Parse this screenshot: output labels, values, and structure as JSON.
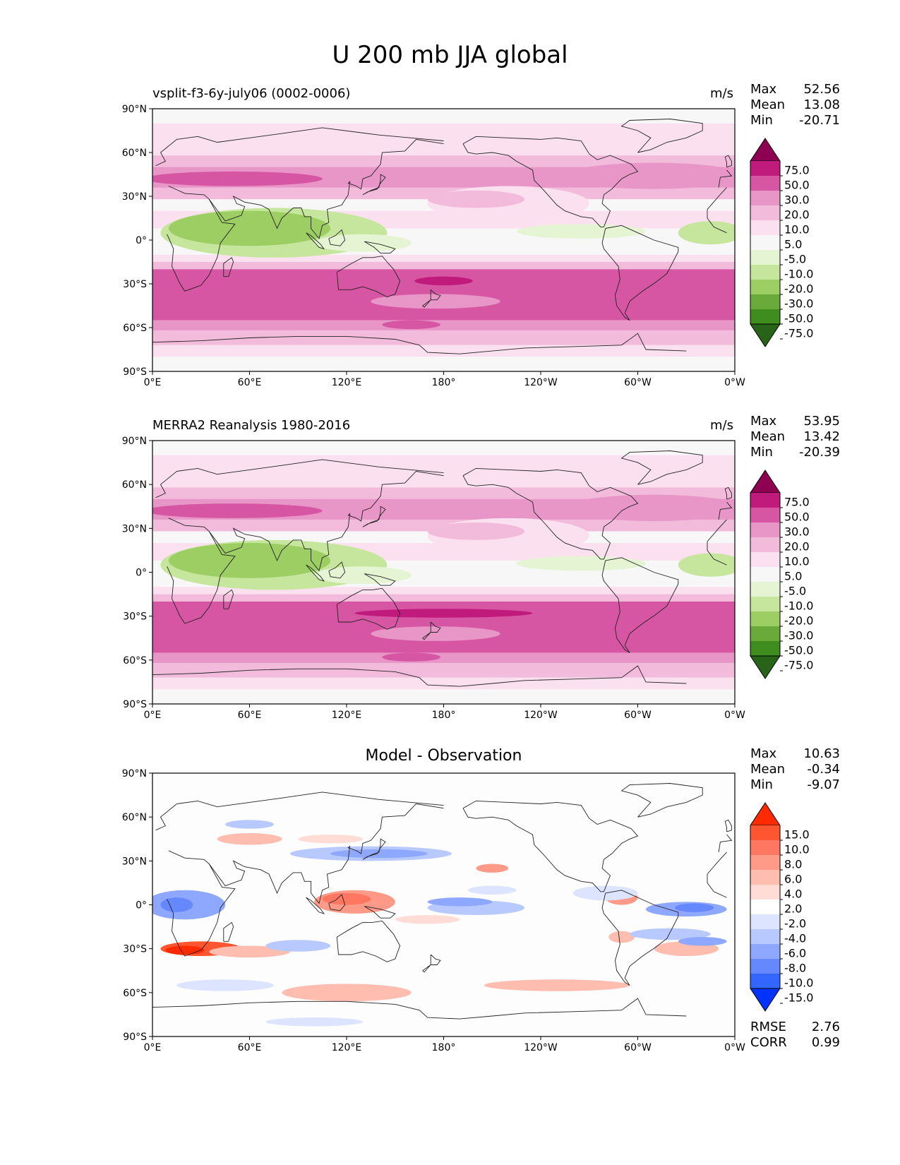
{
  "suptitle": "U 200 mb JJA global",
  "colors": {
    "model_obs_levels_colors": [
      "#276419",
      "#3f8c1f",
      "#6aaa3a",
      "#9cce63",
      "#c5e69c",
      "#e5f4d2",
      "#f7f7f7",
      "#fbe0ef",
      "#f2bbdc",
      "#e796c7",
      "#d656a3",
      "#c01a7d",
      "#8e0152"
    ],
    "diff_levels_colors": [
      "#0033ff",
      "#3366ff",
      "#6688ff",
      "#8fa8ff",
      "#b8c9ff",
      "#dde4ff",
      "#ffffff",
      "#ffdcd5",
      "#ffbdb0",
      "#ff9a88",
      "#ff7760",
      "#ff5530",
      "#ff2a00"
    ]
  },
  "chart_data": [
    {
      "type": "heatmap",
      "panel": "model",
      "title_left": "vsplit-f3-6y-july06 (0002-0006)",
      "title_right": "m/s",
      "stats": [
        {
          "label": "Max",
          "value": "52.56"
        },
        {
          "label": "Mean",
          "value": "13.08"
        },
        {
          "label": "Min",
          "value": "-20.71"
        }
      ],
      "x_ticks": [
        "0°E",
        "60°E",
        "120°E",
        "180°",
        "120°W",
        "60°W",
        "0°W"
      ],
      "y_ticks": [
        "90°N",
        "60°N",
        "30°N",
        "0°",
        "30°S",
        "60°S",
        "90°S"
      ],
      "colorbar_levels": [
        "75.0",
        "50.0",
        "30.0",
        "20.0",
        "10.0",
        "5.0",
        "-5.0",
        "-10.0",
        "-20.0",
        "-30.0",
        "-50.0",
        "-75.0"
      ],
      "colorbar_extend": "both"
    },
    {
      "type": "heatmap",
      "panel": "observation",
      "title_left": "MERRA2 Reanalysis 1980-2016",
      "title_right": "m/s",
      "stats": [
        {
          "label": "Max",
          "value": "53.95"
        },
        {
          "label": "Mean",
          "value": "13.42"
        },
        {
          "label": "Min",
          "value": "-20.39"
        }
      ],
      "x_ticks": [
        "0°E",
        "60°E",
        "120°E",
        "180°",
        "120°W",
        "60°W",
        "0°W"
      ],
      "y_ticks": [
        "90°N",
        "60°N",
        "30°N",
        "0°",
        "30°S",
        "60°S",
        "90°S"
      ],
      "colorbar_levels": [
        "75.0",
        "50.0",
        "30.0",
        "20.0",
        "10.0",
        "5.0",
        "-5.0",
        "-10.0",
        "-20.0",
        "-30.0",
        "-50.0",
        "-75.0"
      ],
      "colorbar_extend": "both"
    },
    {
      "type": "heatmap",
      "panel": "difference",
      "title_center": "Model - Observation",
      "stats": [
        {
          "label": "Max",
          "value": "10.63"
        },
        {
          "label": "Mean",
          "value": "-0.34"
        },
        {
          "label": "Min",
          "value": "-9.07"
        }
      ],
      "bottom_stats": [
        {
          "label": "RMSE",
          "value": "2.76"
        },
        {
          "label": "CORR",
          "value": "0.99"
        }
      ],
      "x_ticks": [
        "0°E",
        "60°E",
        "120°E",
        "180°",
        "120°W",
        "60°W",
        "0°W"
      ],
      "y_ticks": [
        "90°N",
        "60°N",
        "30°N",
        "0°",
        "30°S",
        "60°S",
        "90°S"
      ],
      "colorbar_levels": [
        "15.0",
        "10.0",
        "8.0",
        "6.0",
        "4.0",
        "2.0",
        "-2.0",
        "-4.0",
        "-6.0",
        "-8.0",
        "-10.0",
        "-15.0"
      ],
      "colorbar_extend": "both"
    }
  ]
}
